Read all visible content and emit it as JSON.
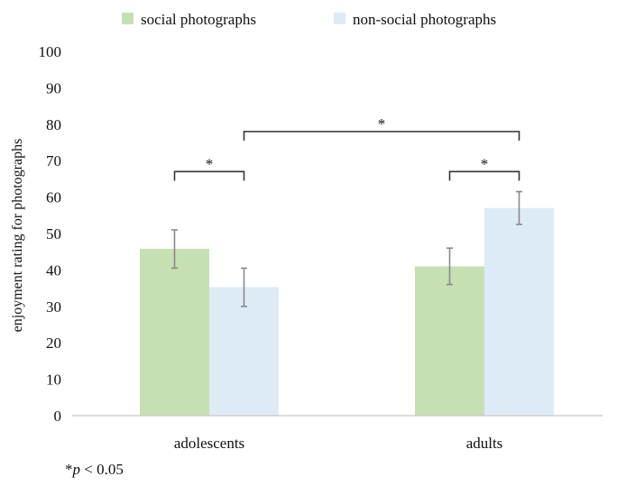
{
  "chart_data": {
    "type": "bar",
    "categories": [
      "adolescents",
      "adults"
    ],
    "series": [
      {
        "name": "social photographs",
        "values": [
          45.8,
          41.0
        ],
        "error_low": [
          40.5,
          36.0
        ],
        "error_high": [
          51.0,
          46.0
        ]
      },
      {
        "name": "non-social photographs",
        "values": [
          35.3,
          57.0
        ],
        "error_low": [
          30.0,
          52.5
        ],
        "error_high": [
          40.5,
          61.5
        ]
      }
    ],
    "ylabel": "enjoyment rating for photographs",
    "xlabel": "",
    "ylim": [
      0,
      100
    ],
    "yticks": [
      0,
      10,
      20,
      30,
      40,
      50,
      60,
      70,
      80,
      90,
      100
    ],
    "legend_position": "top",
    "colors": {
      "social photographs": "#c6e0b4",
      "non-social photographs": "#ddebf7"
    },
    "significance": [
      {
        "label": "*",
        "between": "adolescents: social vs non-social",
        "level": 67
      },
      {
        "label": "*",
        "between": "adults: social vs non-social",
        "level": 67
      },
      {
        "label": "*",
        "between": "adolescents non-social vs adults non-social",
        "level": 78
      }
    ],
    "footnote": {
      "prefix": "*",
      "italic": "p",
      "rest": " < 0.05"
    }
  }
}
